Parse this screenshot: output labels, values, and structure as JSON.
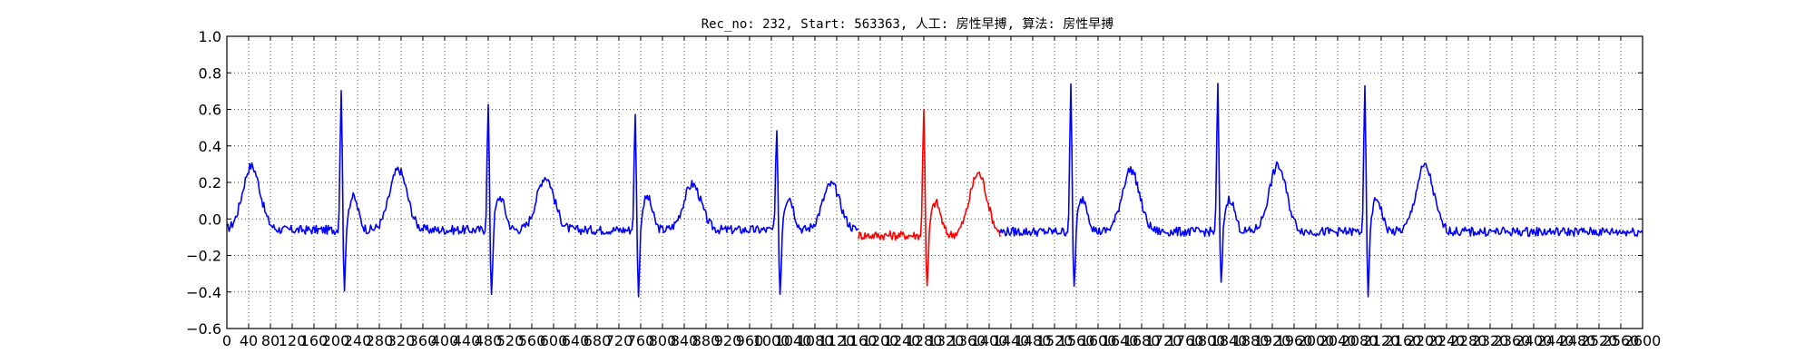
{
  "chart_data": {
    "type": "line",
    "title": "Rec_no: 232, Start: 563363, 人工: 房性早搏, 算法: 房性早搏",
    "xlabel": "",
    "ylabel": "",
    "xlim": [
      0,
      2600
    ],
    "ylim": [
      -0.6,
      1.0
    ],
    "yticks": [
      -0.6,
      -0.4,
      -0.2,
      0.0,
      0.2,
      0.4,
      0.6,
      0.8,
      1.0
    ],
    "ytick_labels": [
      "−0.6",
      "−0.4",
      "−0.2",
      "0.0",
      "0.2",
      "0.4",
      "0.6",
      "0.8",
      "1.0"
    ],
    "xticks": [
      0,
      40,
      80,
      120,
      160,
      200,
      240,
      280,
      320,
      360,
      400,
      440,
      480,
      520,
      560,
      600,
      640,
      680,
      720,
      760,
      800,
      840,
      880,
      920,
      960,
      1000,
      1040,
      1080,
      1120,
      1160,
      1200,
      1240,
      1280,
      1320,
      1360,
      1400,
      1440,
      1480,
      1520,
      1560,
      1600,
      1640,
      1680,
      1720,
      1760,
      1800,
      1840,
      1880,
      1920,
      1960,
      2000,
      2040,
      2080,
      2120,
      2160,
      2200,
      2240,
      2280,
      2320,
      2360,
      2400,
      2440,
      2480,
      2520,
      2560,
      2600
    ],
    "grid": true,
    "grid_style": "dotted",
    "series": [
      {
        "color": "#0000ff",
        "segment": "before",
        "x_range": [
          0,
          1160
        ],
        "baseline": -0.06,
        "beats": [
          {
            "r": 210,
            "r_amp": 0.79,
            "s_amp": -0.42,
            "t": 45,
            "t_amp": 0.29
          },
          {
            "r": 480,
            "r_amp": 0.7,
            "s_amp": -0.45,
            "t": 315,
            "t_amp": 0.27
          },
          {
            "r": 750,
            "r_amp": 0.64,
            "s_amp": -0.45,
            "t": 585,
            "t_amp": 0.23
          },
          {
            "r": 1010,
            "r_amp": 0.58,
            "s_amp": -0.45,
            "t": 855,
            "t_amp": 0.19
          },
          {
            "t": 1110,
            "t_amp": 0.19
          }
        ]
      },
      {
        "color": "#ff0000",
        "segment": "highlighted",
        "x_range": [
          1160,
          1420
        ],
        "baseline": -0.09,
        "beats": [
          {
            "r": 1280,
            "r_amp": 0.72,
            "s_amp": -0.42,
            "t": 1380,
            "t_amp": 0.25
          }
        ]
      },
      {
        "color": "#0000ff",
        "segment": "after",
        "x_range": [
          1420,
          2600
        ],
        "baseline": -0.07,
        "beats": [
          {
            "r": 1550,
            "r_amp": 0.8,
            "s_amp": -0.42,
            "t": 1660,
            "t_amp": 0.27
          },
          {
            "r": 1820,
            "r_amp": 0.81,
            "s_amp": -0.41,
            "t": 1930,
            "t_amp": 0.29
          },
          {
            "r": 2090,
            "r_amp": 0.79,
            "s_amp": -0.46,
            "t": 2200,
            "t_amp": 0.29
          }
        ]
      }
    ]
  }
}
